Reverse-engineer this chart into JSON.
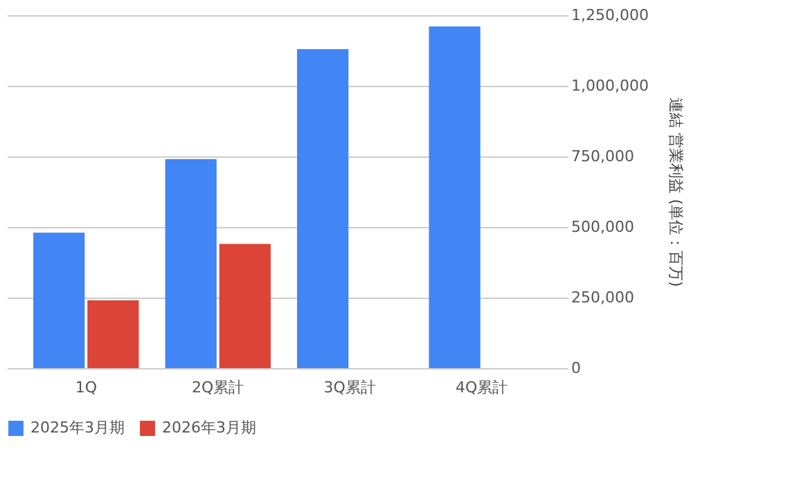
{
  "chart_data": {
    "type": "bar",
    "ylabel": "連結 営業利益 (単位：百万)",
    "categories": [
      "1Q",
      "2Q累計",
      "3Q累計",
      "4Q累計"
    ],
    "series": [
      {
        "name": "2025年3月期",
        "color": "#4285f4",
        "values": [
          480000,
          740000,
          1130000,
          1210000
        ]
      },
      {
        "name": "2026年3月期",
        "color": "#db4437",
        "values": [
          240000,
          440000,
          null,
          null
        ]
      }
    ],
    "ylim": [
      0,
      1250000
    ],
    "yticks": [
      {
        "value": 0,
        "label": "0"
      },
      {
        "value": 250000,
        "label": "250,000"
      },
      {
        "value": 500000,
        "label": "500,000"
      },
      {
        "value": 750000,
        "label": "750,000"
      },
      {
        "value": 1000000,
        "label": "1,000,000"
      },
      {
        "value": 1250000,
        "label": "1,250,000"
      }
    ],
    "grid": "y",
    "legend": "bottom"
  }
}
